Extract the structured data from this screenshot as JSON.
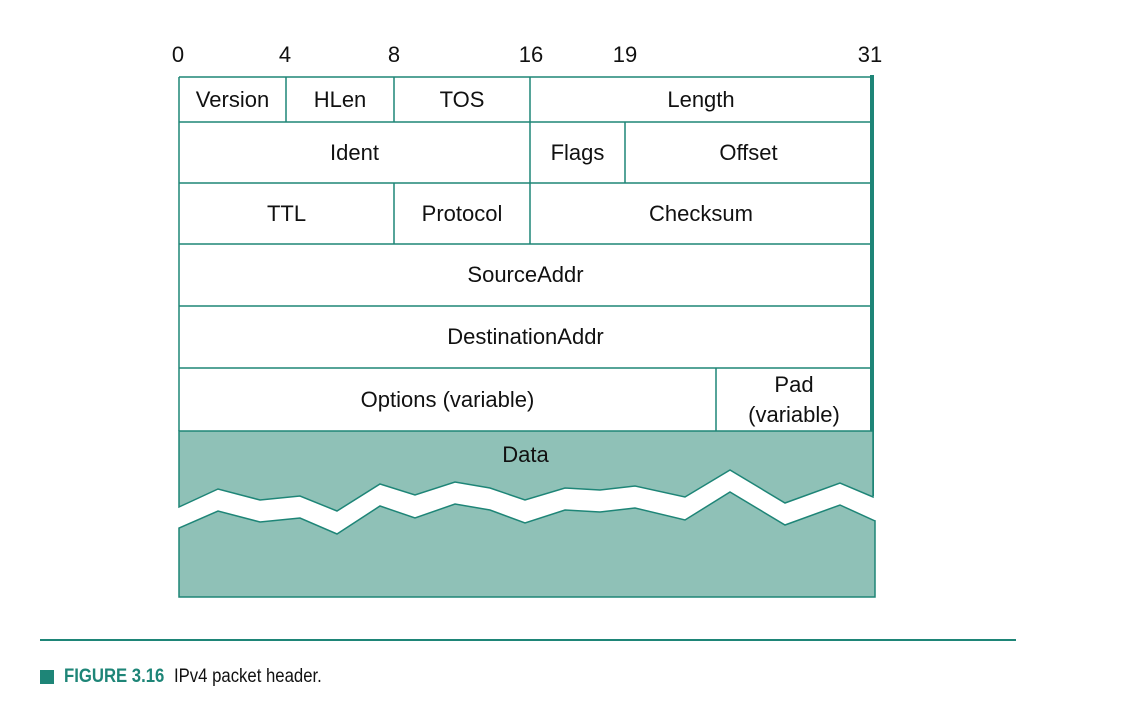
{
  "bit_positions": [
    "0",
    "4",
    "8",
    "16",
    "19",
    "31"
  ],
  "rows": {
    "r1": {
      "version": "Version",
      "hlen": "HLen",
      "tos": "TOS",
      "length": "Length"
    },
    "r2": {
      "ident": "Ident",
      "flags": "Flags",
      "offset": "Offset"
    },
    "r3": {
      "ttl": "TTL",
      "protocol": "Protocol",
      "checksum": "Checksum"
    },
    "r4": {
      "source": "SourceAddr"
    },
    "r5": {
      "destination": "DestinationAddr"
    },
    "r6": {
      "options": "Options (variable)",
      "pad_line1": "Pad",
      "pad_line2": "(variable)"
    }
  },
  "data_label": "Data",
  "caption": {
    "figure": "FIGURE 3.16",
    "text": "IPv4 packet header."
  },
  "colors": {
    "accent": "#1e8577",
    "data_fill": "#8fc1b7",
    "line": "#1e8577"
  }
}
